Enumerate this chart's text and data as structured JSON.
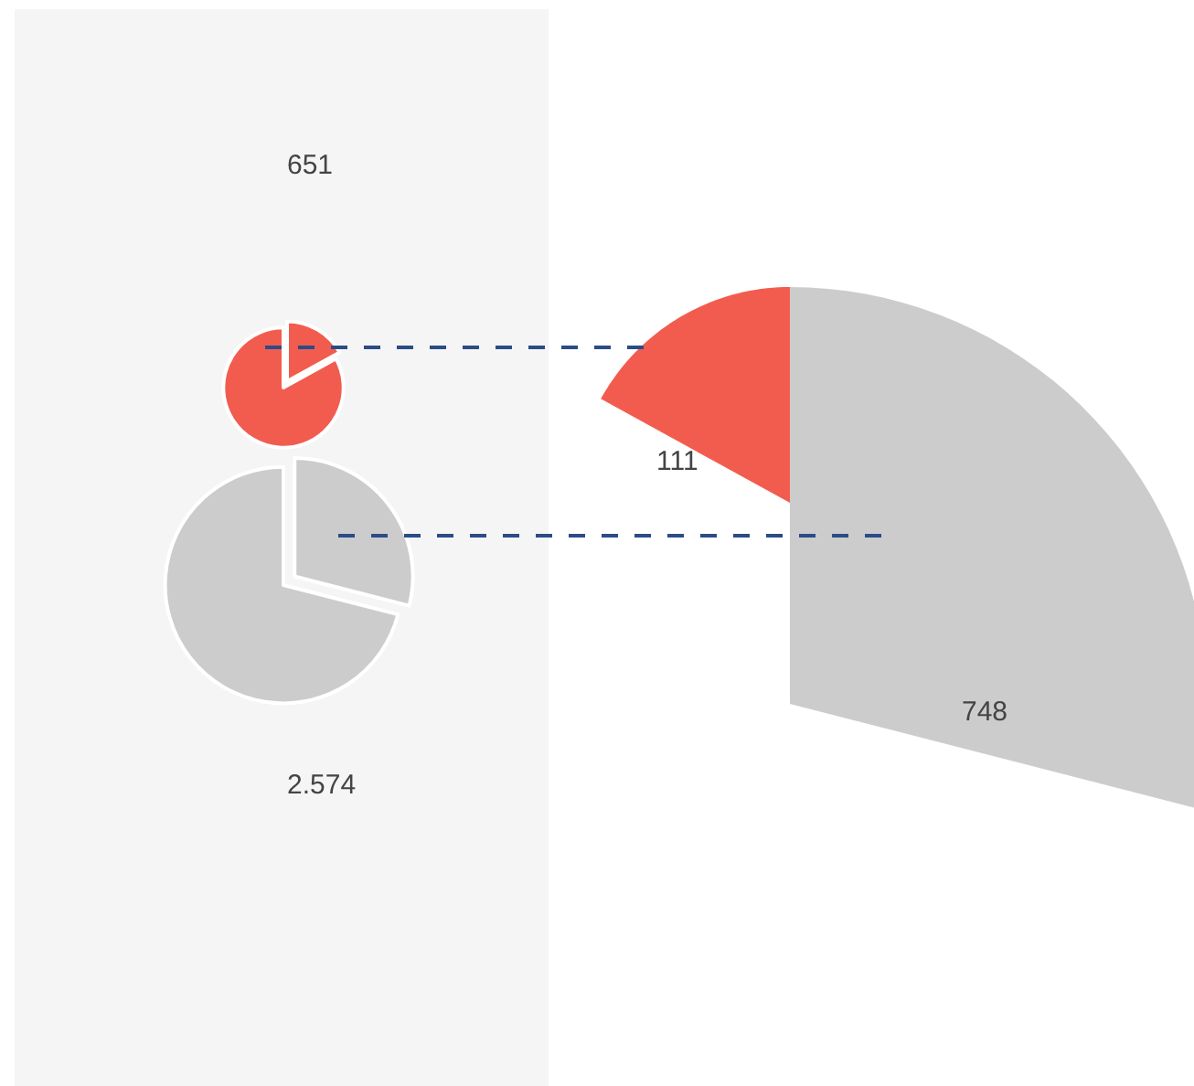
{
  "chart_data": [
    {
      "type": "pie",
      "title": "651",
      "categories": [
        null,
        null
      ],
      "values": [
        17,
        83
      ],
      "colors": [
        "#f25c4f",
        "#f25c4f"
      ],
      "annotations": [
        "111"
      ]
    },
    {
      "type": "pie",
      "title": "2.574",
      "categories": [
        null,
        null
      ],
      "values": [
        29,
        71
      ],
      "colors": [
        "#cccccc",
        "#cccccc"
      ],
      "annotations": [
        "748"
      ]
    }
  ]
}
